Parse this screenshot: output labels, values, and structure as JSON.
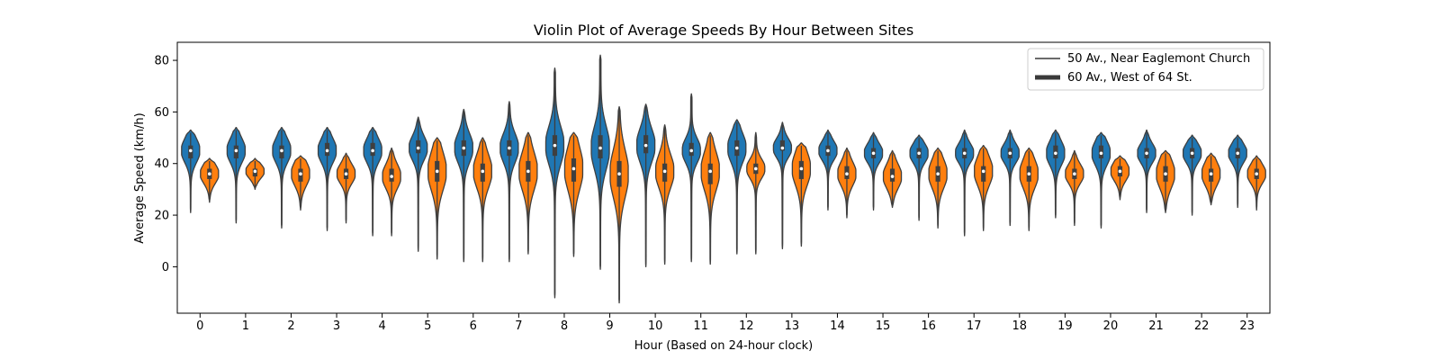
{
  "chart_data": {
    "type": "violin",
    "title": "Violin Plot of Average Speeds By Hour Between Sites",
    "xlabel": "Hour (Based on 24-hour clock)",
    "ylabel": "Average Speed (km/h)",
    "ylim": [
      -18,
      87
    ],
    "yticks": [
      0,
      20,
      40,
      60,
      80
    ],
    "categories": [
      "0",
      "1",
      "2",
      "3",
      "4",
      "5",
      "6",
      "7",
      "8",
      "9",
      "10",
      "11",
      "12",
      "13",
      "14",
      "15",
      "16",
      "17",
      "18",
      "19",
      "20",
      "21",
      "22",
      "23"
    ],
    "legend": {
      "placement": "top-right"
    },
    "grid": false,
    "series": [
      {
        "name": "50 Av., Near Eaglemont Church",
        "color": "#1f77b4",
        "min": [
          21,
          17,
          15,
          14,
          12,
          6,
          2,
          2,
          -12,
          -1,
          0,
          2,
          5,
          7,
          22,
          22,
          18,
          12,
          16,
          19,
          15,
          21,
          20,
          23
        ],
        "max": [
          53,
          54,
          54,
          54,
          54,
          58,
          61,
          64,
          77,
          82,
          63,
          67,
          57,
          56,
          53,
          52,
          51,
          53,
          53,
          53,
          52,
          53,
          51,
          51
        ],
        "q1": [
          42,
          42,
          42,
          43,
          43,
          44,
          43,
          43,
          43,
          42,
          44,
          43,
          43,
          45,
          43,
          42,
          42,
          42,
          42,
          42,
          42,
          42,
          42,
          42
        ],
        "median": [
          45,
          45,
          45,
          45,
          45,
          46,
          46,
          46,
          47,
          46,
          47,
          45,
          46,
          46,
          45,
          44,
          44,
          44,
          44,
          44,
          44,
          44,
          44,
          44
        ],
        "q3": [
          47,
          47,
          47,
          48,
          48,
          49,
          49,
          49,
          51,
          51,
          51,
          48,
          49,
          49,
          47,
          46,
          46,
          46,
          46,
          47,
          47,
          46,
          46,
          46
        ]
      },
      {
        "name": "60 Av., West of 64 St.",
        "color": "#ff7f0e",
        "min": [
          25,
          30,
          22,
          17,
          12,
          3,
          2,
          5,
          4,
          -14,
          1,
          1,
          5,
          8,
          19,
          23,
          15,
          14,
          14,
          16,
          26,
          21,
          24,
          22
        ],
        "max": [
          42,
          42,
          43,
          44,
          46,
          50,
          50,
          52,
          52,
          62,
          55,
          52,
          52,
          48,
          46,
          45,
          46,
          47,
          46,
          45,
          43,
          45,
          44,
          43
        ],
        "q1": [
          34,
          35,
          33,
          34,
          33,
          33,
          33,
          33,
          33,
          31,
          33,
          32,
          36,
          34,
          34,
          33,
          33,
          33,
          33,
          34,
          35,
          33,
          33,
          34
        ],
        "median": [
          36,
          37,
          36,
          36,
          35,
          37,
          37,
          37,
          38,
          36,
          37,
          37,
          38,
          38,
          36,
          35,
          36,
          37,
          36,
          36,
          37,
          36,
          36,
          36
        ],
        "q3": [
          38,
          38,
          38,
          38,
          38,
          41,
          40,
          41,
          42,
          41,
          40,
          40,
          40,
          41,
          39,
          38,
          39,
          39,
          39,
          38,
          39,
          39,
          38,
          38
        ]
      }
    ]
  }
}
